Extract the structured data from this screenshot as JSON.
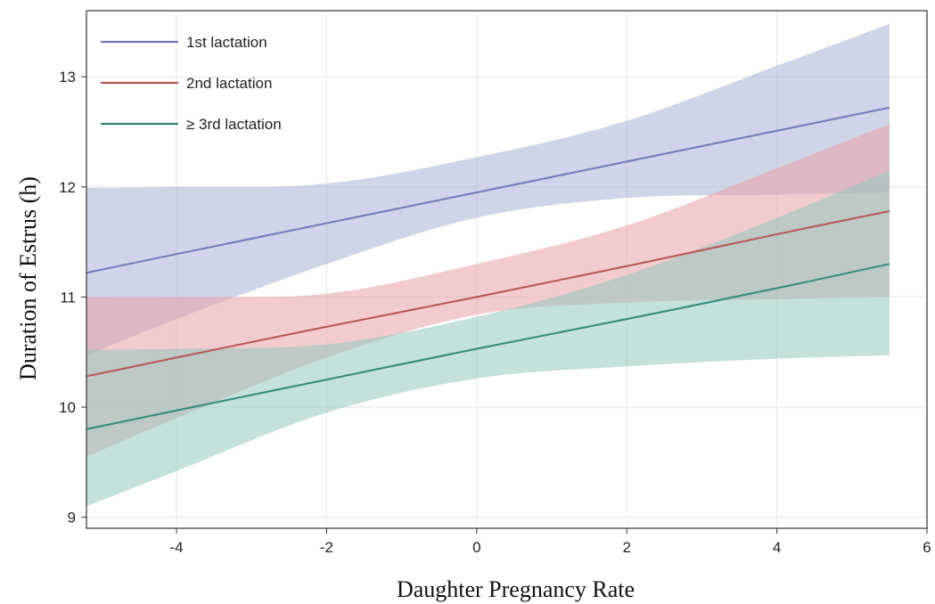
{
  "chart_data": {
    "type": "line",
    "xlabel": "Daughter Pregnancy Rate",
    "ylabel": "Duration of Estrus (h)",
    "xlim": [
      -5.2,
      6
    ],
    "ylim": [
      8.9,
      13.6
    ],
    "xticks": [
      -4,
      -2,
      0,
      2,
      4,
      6
    ],
    "xtick_labels": [
      "-4",
      "-2",
      "0",
      "2",
      "4",
      "6"
    ],
    "yticks": [
      9,
      10,
      11,
      12,
      13
    ],
    "ytick_labels": [
      "9",
      "10",
      "11",
      "12",
      "13"
    ],
    "grid": true,
    "legend_position": "top-left",
    "x": [
      -5.2,
      -4,
      -2,
      0,
      2,
      4,
      5.5
    ],
    "series": [
      {
        "name": "1st lactation",
        "color": "#6e78b8",
        "band_color": "#a9b1d6",
        "values": [
          11.22,
          11.39,
          11.67,
          11.95,
          12.23,
          12.51,
          12.72
        ],
        "lower": [
          10.47,
          10.8,
          11.3,
          11.72,
          11.9,
          11.93,
          11.95
        ],
        "upper": [
          11.99,
          12.0,
          12.03,
          12.27,
          12.6,
          13.1,
          13.48
        ]
      },
      {
        "name": "2nd lactation",
        "color": "#b85450",
        "band_color": "#e8a0a6",
        "values": [
          10.28,
          10.45,
          10.73,
          11.0,
          11.28,
          11.57,
          11.78
        ],
        "lower": [
          9.55,
          9.9,
          10.45,
          10.84,
          10.95,
          10.98,
          11.0
        ],
        "upper": [
          11.0,
          11.0,
          11.03,
          11.3,
          11.65,
          12.17,
          12.57
        ]
      },
      {
        "name": "≥ 3rd lactation",
        "color": "#2e8a76",
        "band_color": "#93c9bd",
        "values": [
          9.8,
          9.97,
          10.25,
          10.53,
          10.8,
          11.08,
          11.3
        ],
        "lower": [
          9.1,
          9.42,
          9.95,
          10.26,
          10.37,
          10.44,
          10.47
        ],
        "upper": [
          10.52,
          10.53,
          10.57,
          10.82,
          11.2,
          11.72,
          12.15
        ]
      }
    ]
  }
}
